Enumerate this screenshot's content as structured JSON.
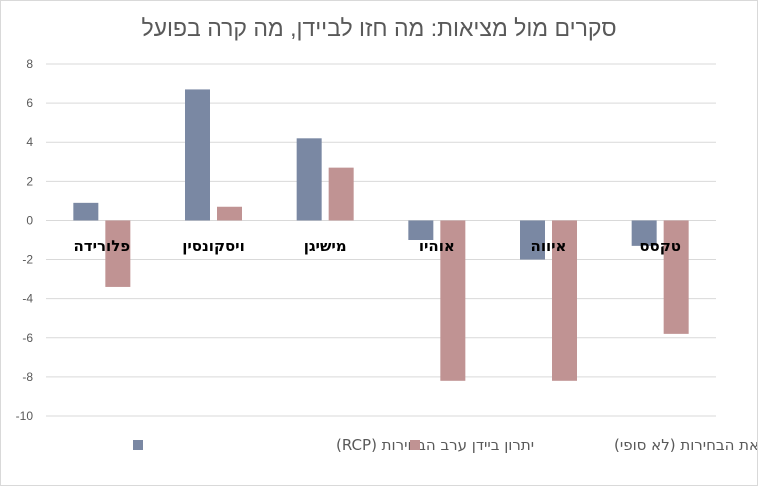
{
  "chart_data": {
    "type": "bar",
    "title": "סקרים מול מציאות: מה חזו לביידן, מה קרה בפועל",
    "categories": [
      "פלורידה",
      "ויסקונסין",
      "מישיגן",
      "אוהיו",
      "איווה",
      "טקסס"
    ],
    "series": [
      {
        "name": "יתרון ביידן ערב הבחירות (RCP)",
        "color": "#7a88a3",
        "values": [
          0.9,
          6.7,
          4.2,
          -1.0,
          -2.0,
          -1.3
        ]
      },
      {
        "name": "תוצאת הבחירות (לא סופי)",
        "color": "#c09393",
        "values": [
          -3.4,
          0.7,
          2.7,
          -8.2,
          -8.2,
          -5.8
        ]
      }
    ],
    "ylim": [
      -10,
      8
    ],
    "yticks": [
      8,
      6,
      4,
      2,
      0,
      -2,
      -4,
      -6,
      -8,
      -10
    ],
    "grid": true,
    "legend": "bottom",
    "xlabel": "",
    "ylabel": ""
  }
}
